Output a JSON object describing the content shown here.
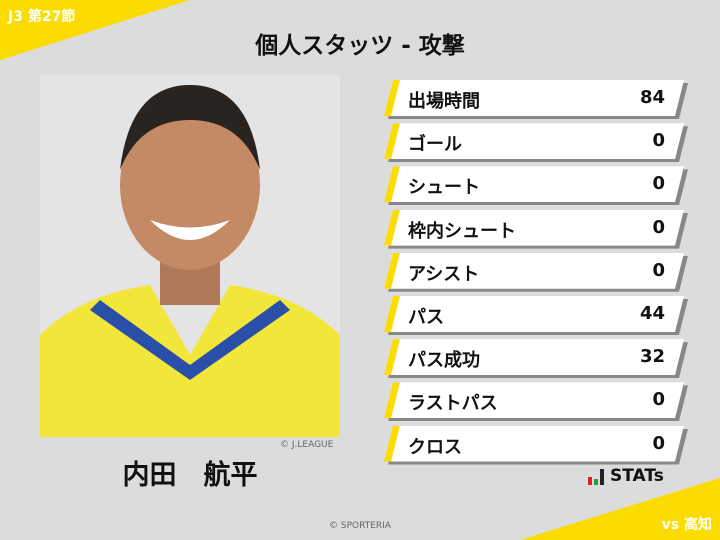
{
  "header": {
    "round": "J3 第27節",
    "title": "個人スタッツ - 攻撃",
    "opponent": "vs 高知"
  },
  "player": {
    "name": "内田　航平",
    "photo_credit": "© J.LEAGUE"
  },
  "stats": [
    {
      "label": "出場時間",
      "value": "84"
    },
    {
      "label": "ゴール",
      "value": "0"
    },
    {
      "label": "シュート",
      "value": "0"
    },
    {
      "label": "枠内シュート",
      "value": "0"
    },
    {
      "label": "アシスト",
      "value": "0"
    },
    {
      "label": "パス",
      "value": "44"
    },
    {
      "label": "パス成功",
      "value": "32"
    },
    {
      "label": "ラストパス",
      "value": "0"
    },
    {
      "label": "クロス",
      "value": "0"
    }
  ],
  "brand": {
    "logo_text": "STATs"
  },
  "footer": {
    "copyright": "© SPORTERIA"
  },
  "colors": {
    "accent": "#fadc00",
    "background": "#dcdcdc"
  }
}
